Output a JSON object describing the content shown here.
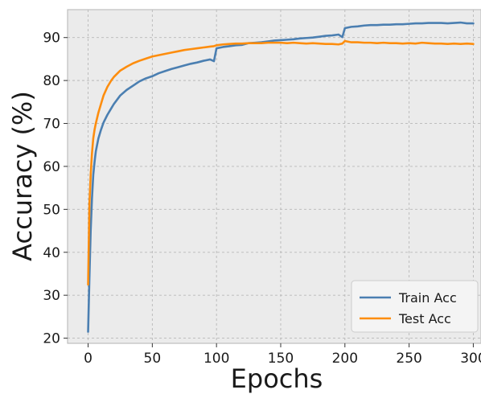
{
  "chart_data": {
    "type": "line",
    "title": "",
    "xlabel": "Epochs",
    "ylabel": "Accuracy (%)",
    "xlim": [
      -16,
      306
    ],
    "ylim": [
      18.8,
      96.5
    ],
    "xticks": [
      0,
      50,
      100,
      150,
      200,
      250,
      300
    ],
    "yticks": [
      20,
      30,
      40,
      50,
      60,
      70,
      80,
      90
    ],
    "grid": true,
    "legend_position": "lower-right",
    "series": [
      {
        "name": "Train Acc",
        "color": "#4b7fb1",
        "x": [
          0,
          1,
          2,
          3,
          4,
          5,
          6,
          8,
          10,
          12,
          15,
          18,
          20,
          25,
          30,
          35,
          40,
          45,
          50,
          55,
          60,
          65,
          70,
          75,
          80,
          85,
          90,
          95,
          98,
          100,
          105,
          110,
          115,
          120,
          125,
          130,
          135,
          140,
          145,
          150,
          155,
          160,
          165,
          170,
          175,
          180,
          185,
          190,
          195,
          198,
          200,
          205,
          210,
          215,
          220,
          225,
          230,
          235,
          240,
          245,
          250,
          255,
          260,
          265,
          270,
          275,
          280,
          285,
          290,
          295,
          300
        ],
        "y": [
          21.5,
          34.0,
          45.0,
          52.5,
          58.0,
          61.0,
          63.5,
          66.5,
          68.5,
          70.2,
          72.0,
          73.5,
          74.5,
          76.5,
          77.8,
          78.8,
          79.8,
          80.5,
          81.0,
          81.7,
          82.2,
          82.7,
          83.1,
          83.5,
          83.9,
          84.2,
          84.6,
          84.9,
          84.5,
          87.5,
          87.8,
          88.0,
          88.2,
          88.3,
          88.7,
          88.8,
          88.9,
          89.1,
          89.3,
          89.4,
          89.5,
          89.6,
          89.8,
          89.9,
          90.0,
          90.2,
          90.4,
          90.5,
          90.7,
          90.1,
          92.2,
          92.5,
          92.6,
          92.8,
          92.9,
          92.9,
          93.0,
          93.0,
          93.1,
          93.1,
          93.2,
          93.3,
          93.3,
          93.4,
          93.4,
          93.4,
          93.3,
          93.4,
          93.5,
          93.3,
          93.3
        ]
      },
      {
        "name": "Test Acc",
        "color": "#fd8d0e",
        "x": [
          0,
          1,
          2,
          3,
          4,
          5,
          6,
          8,
          10,
          12,
          15,
          18,
          20,
          25,
          30,
          35,
          40,
          45,
          50,
          55,
          60,
          65,
          70,
          75,
          80,
          85,
          90,
          95,
          98,
          100,
          105,
          110,
          115,
          120,
          125,
          130,
          135,
          140,
          145,
          150,
          155,
          160,
          165,
          170,
          175,
          180,
          185,
          190,
          195,
          198,
          200,
          205,
          210,
          215,
          220,
          225,
          230,
          235,
          240,
          245,
          250,
          255,
          260,
          265,
          270,
          275,
          280,
          285,
          290,
          295,
          300
        ],
        "y": [
          32.5,
          51.0,
          58.0,
          63.0,
          66.5,
          68.5,
          70.0,
          72.5,
          74.5,
          76.5,
          78.5,
          80.0,
          80.8,
          82.3,
          83.2,
          84.0,
          84.6,
          85.1,
          85.6,
          85.9,
          86.2,
          86.5,
          86.8,
          87.1,
          87.3,
          87.5,
          87.7,
          87.9,
          88.0,
          88.2,
          88.4,
          88.5,
          88.6,
          88.6,
          88.7,
          88.7,
          88.7,
          88.8,
          88.8,
          88.8,
          88.7,
          88.8,
          88.7,
          88.6,
          88.7,
          88.6,
          88.5,
          88.5,
          88.4,
          88.6,
          89.2,
          88.9,
          88.9,
          88.8,
          88.8,
          88.7,
          88.8,
          88.7,
          88.7,
          88.6,
          88.7,
          88.6,
          88.8,
          88.7,
          88.6,
          88.6,
          88.5,
          88.6,
          88.5,
          88.6,
          88.5
        ]
      }
    ]
  }
}
